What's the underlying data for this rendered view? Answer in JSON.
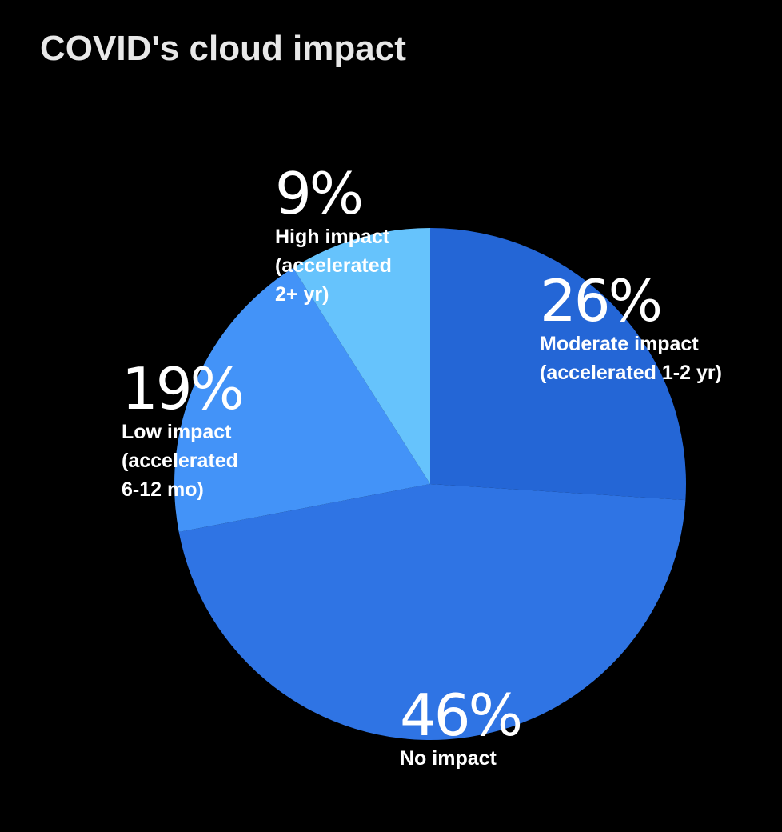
{
  "chart_data": {
    "type": "pie",
    "title": "COVID's cloud impact",
    "slices": [
      {
        "key": "moderate",
        "label": "Moderate impact\n(accelerated 1-2 yr)",
        "percent_label": "26%",
        "value": 26,
        "color": "#2466d6"
      },
      {
        "key": "none",
        "label": "No impact",
        "percent_label": "46%",
        "value": 46,
        "color": "#2f74e4"
      },
      {
        "key": "low",
        "label": "Low impact\n(accelerated\n6-12 mo)",
        "percent_label": "19%",
        "value": 19,
        "color": "#4393f8"
      },
      {
        "key": "high",
        "label": "High impact\n(accelerated\n2+ yr)",
        "percent_label": "9%",
        "value": 9,
        "color": "#66c3fc"
      }
    ],
    "start": "12 o'clock",
    "direction": "clockwise",
    "legend": "none"
  }
}
